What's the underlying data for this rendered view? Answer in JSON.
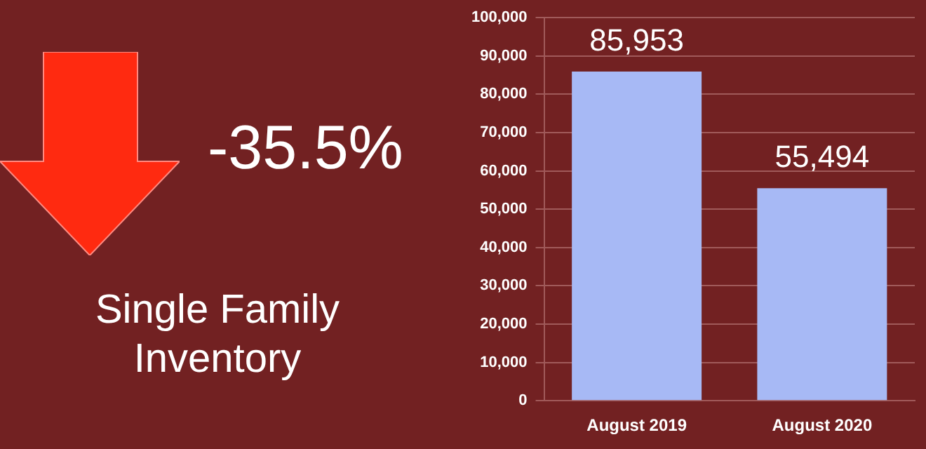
{
  "chart_data": {
    "type": "bar",
    "title": "Single Family Inventory",
    "annotations": [
      "-35.5%"
    ],
    "categories": [
      "August 2019",
      "August 2020"
    ],
    "values": [
      85953,
      55494
    ],
    "color": "#a7b9f5",
    "value_labels": [
      "85,953",
      "55,494"
    ],
    "ylim": [
      0,
      100000
    ],
    "yticks": [
      {
        "value": 0,
        "label": "0"
      },
      {
        "value": 10000,
        "label": "10,000"
      },
      {
        "value": 20000,
        "label": "20,000"
      },
      {
        "value": 30000,
        "label": "30,000"
      },
      {
        "value": 40000,
        "label": "40,000"
      },
      {
        "value": 50000,
        "label": "50,000"
      },
      {
        "value": 60000,
        "label": "60,000"
      },
      {
        "value": 70000,
        "label": "70,000"
      },
      {
        "value": 80000,
        "label": "80,000"
      },
      {
        "value": 90000,
        "label": "90,000"
      },
      {
        "value": 100000,
        "label": "100,000"
      }
    ],
    "grid": "y"
  }
}
